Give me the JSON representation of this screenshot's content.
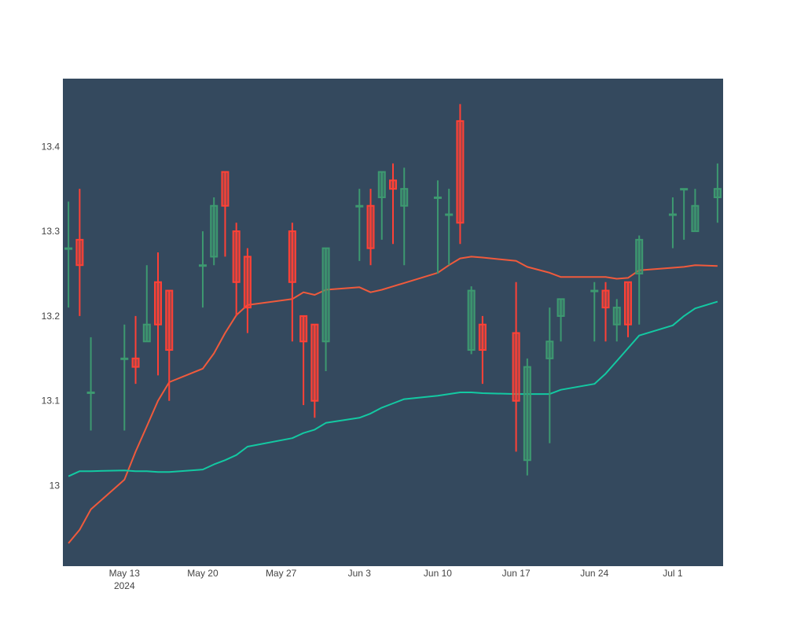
{
  "chart_data": {
    "type": "candlestick",
    "title": "",
    "xlabel": "",
    "ylabel": "",
    "ylim": [
      12.905,
      13.48
    ],
    "y_ticks": [
      13,
      13.1,
      13.2,
      13.3,
      13.4
    ],
    "y_tick_labels": [
      "13",
      "13.1",
      "13.2",
      "13.3",
      "13.4"
    ],
    "x_ticks": [
      "2024-05-13",
      "2024-05-20",
      "2024-05-27",
      "2024-06-03",
      "2024-06-10",
      "2024-06-17",
      "2024-06-24",
      "2024-07-01"
    ],
    "x_tick_labels": [
      "May 13",
      "May 20",
      "May 27",
      "Jun 3",
      "Jun 10",
      "Jun 17",
      "Jun 24",
      "Jul 1"
    ],
    "x_tick_year": "2024",
    "grid": false,
    "colors": {
      "plot_bg": "#34495e",
      "increasing": "#3d9970",
      "decreasing": "#ff4136",
      "ma_fast": "#f05a3c",
      "ma_slow": "#13c9a2"
    },
    "candles": [
      {
        "date": "2024-05-08",
        "open": 13.28,
        "high": 13.335,
        "low": 13.21,
        "close": 13.28
      },
      {
        "date": "2024-05-09",
        "open": 13.29,
        "high": 13.35,
        "low": 13.2,
        "close": 13.26
      },
      {
        "date": "2024-05-10",
        "open": 13.11,
        "high": 13.175,
        "low": 13.065,
        "close": 13.11
      },
      {
        "date": "2024-05-13",
        "open": 13.15,
        "high": 13.19,
        "low": 13.065,
        "close": 13.15
      },
      {
        "date": "2024-05-14",
        "open": 13.15,
        "high": 13.2,
        "low": 13.12,
        "close": 13.14
      },
      {
        "date": "2024-05-15",
        "open": 13.17,
        "high": 13.26,
        "low": 13.17,
        "close": 13.19
      },
      {
        "date": "2024-05-16",
        "open": 13.24,
        "high": 13.275,
        "low": 13.13,
        "close": 13.19
      },
      {
        "date": "2024-05-17",
        "open": 13.23,
        "high": 13.23,
        "low": 13.1,
        "close": 13.16
      },
      {
        "date": "2024-05-20",
        "open": 13.26,
        "high": 13.3,
        "low": 13.21,
        "close": 13.26
      },
      {
        "date": "2024-05-21",
        "open": 13.27,
        "high": 13.34,
        "low": 13.26,
        "close": 13.33
      },
      {
        "date": "2024-05-22",
        "open": 13.37,
        "high": 13.37,
        "low": 13.27,
        "close": 13.33
      },
      {
        "date": "2024-05-23",
        "open": 13.3,
        "high": 13.31,
        "low": 13.2,
        "close": 13.24
      },
      {
        "date": "2024-05-24",
        "open": 13.27,
        "high": 13.28,
        "low": 13.18,
        "close": 13.21
      },
      {
        "date": "2024-05-28",
        "open": 13.3,
        "high": 13.31,
        "low": 13.17,
        "close": 13.24
      },
      {
        "date": "2024-05-29",
        "open": 13.2,
        "high": 13.2,
        "low": 13.095,
        "close": 13.17
      },
      {
        "date": "2024-05-30",
        "open": 13.19,
        "high": 13.19,
        "low": 13.08,
        "close": 13.1
      },
      {
        "date": "2024-05-31",
        "open": 13.17,
        "high": 13.28,
        "low": 13.135,
        "close": 13.28
      },
      {
        "date": "2024-06-03",
        "open": 13.33,
        "high": 13.35,
        "low": 13.265,
        "close": 13.33
      },
      {
        "date": "2024-06-04",
        "open": 13.33,
        "high": 13.35,
        "low": 13.26,
        "close": 13.28
      },
      {
        "date": "2024-06-05",
        "open": 13.34,
        "high": 13.37,
        "low": 13.29,
        "close": 13.37
      },
      {
        "date": "2024-06-06",
        "open": 13.36,
        "high": 13.38,
        "low": 13.285,
        "close": 13.35
      },
      {
        "date": "2024-06-07",
        "open": 13.33,
        "high": 13.375,
        "low": 13.26,
        "close": 13.35
      },
      {
        "date": "2024-06-10",
        "open": 13.34,
        "high": 13.36,
        "low": 13.25,
        "close": 13.34
      },
      {
        "date": "2024-06-11",
        "open": 13.32,
        "high": 13.35,
        "low": 13.26,
        "close": 13.32
      },
      {
        "date": "2024-06-12",
        "open": 13.43,
        "high": 13.45,
        "low": 13.285,
        "close": 13.31
      },
      {
        "date": "2024-06-13",
        "open": 13.16,
        "high": 13.235,
        "low": 13.155,
        "close": 13.23
      },
      {
        "date": "2024-06-14",
        "open": 13.19,
        "high": 13.2,
        "low": 13.12,
        "close": 13.16
      },
      {
        "date": "2024-06-17",
        "open": 13.18,
        "high": 13.24,
        "low": 13.04,
        "close": 13.1
      },
      {
        "date": "2024-06-18",
        "open": 13.03,
        "high": 13.15,
        "low": 13.012,
        "close": 13.14
      },
      {
        "date": "2024-06-20",
        "open": 13.15,
        "high": 13.21,
        "low": 13.05,
        "close": 13.17
      },
      {
        "date": "2024-06-21",
        "open": 13.2,
        "high": 13.22,
        "low": 13.17,
        "close": 13.22
      },
      {
        "date": "2024-06-24",
        "open": 13.23,
        "high": 13.24,
        "low": 13.17,
        "close": 13.23
      },
      {
        "date": "2024-06-25",
        "open": 13.23,
        "high": 13.24,
        "low": 13.17,
        "close": 13.21
      },
      {
        "date": "2024-06-26",
        "open": 13.19,
        "high": 13.22,
        "low": 13.17,
        "close": 13.21
      },
      {
        "date": "2024-06-27",
        "open": 13.24,
        "high": 13.24,
        "low": 13.175,
        "close": 13.19
      },
      {
        "date": "2024-06-28",
        "open": 13.25,
        "high": 13.295,
        "low": 13.19,
        "close": 13.29
      },
      {
        "date": "2024-07-01",
        "open": 13.32,
        "high": 13.34,
        "low": 13.28,
        "close": 13.32
      },
      {
        "date": "2024-07-02",
        "open": 13.35,
        "high": 13.35,
        "low": 13.29,
        "close": 13.35
      },
      {
        "date": "2024-07-03",
        "open": 13.3,
        "high": 13.35,
        "low": 13.3,
        "close": 13.33
      },
      {
        "date": "2024-07-05",
        "open": 13.34,
        "high": 13.38,
        "low": 13.31,
        "close": 13.35
      }
    ],
    "series": [
      {
        "x": [
          "2024-05-08",
          "2024-05-09",
          "2024-05-10",
          "2024-05-13",
          "2024-05-14",
          "2024-05-15",
          "2024-05-16",
          "2024-05-17",
          "2024-05-20",
          "2024-05-21",
          "2024-05-22",
          "2024-05-23",
          "2024-05-24",
          "2024-05-28",
          "2024-05-29",
          "2024-05-30",
          "2024-05-31",
          "2024-06-03",
          "2024-06-04",
          "2024-06-05",
          "2024-06-06",
          "2024-06-07",
          "2024-06-10",
          "2024-06-11",
          "2024-06-12",
          "2024-06-13",
          "2024-06-14",
          "2024-06-17",
          "2024-06-18",
          "2024-06-20",
          "2024-06-21",
          "2024-06-24",
          "2024-06-25",
          "2024-06-26",
          "2024-06-27",
          "2024-06-28",
          "2024-07-01",
          "2024-07-02",
          "2024-07-03",
          "2024-07-05"
        ],
        "values": [
          12.932,
          12.948,
          12.972,
          13.007,
          13.04,
          13.07,
          13.1,
          13.122,
          13.138,
          13.156,
          13.18,
          13.201,
          13.213,
          13.22,
          13.228,
          13.225,
          13.231,
          13.234,
          13.228,
          13.231,
          13.235,
          13.239,
          13.251,
          13.26,
          13.268,
          13.27,
          13.269,
          13.265,
          13.258,
          13.251,
          13.246,
          13.246,
          13.246,
          13.244,
          13.245,
          13.254,
          13.257,
          13.258,
          13.26,
          13.259
        ]
      },
      {
        "x": [
          "2024-05-08",
          "2024-05-09",
          "2024-05-10",
          "2024-05-13",
          "2024-05-14",
          "2024-05-15",
          "2024-05-16",
          "2024-05-17",
          "2024-05-20",
          "2024-05-21",
          "2024-05-22",
          "2024-05-23",
          "2024-05-24",
          "2024-05-28",
          "2024-05-29",
          "2024-05-30",
          "2024-05-31",
          "2024-06-03",
          "2024-06-04",
          "2024-06-05",
          "2024-06-06",
          "2024-06-07",
          "2024-06-10",
          "2024-06-11",
          "2024-06-12",
          "2024-06-13",
          "2024-06-14",
          "2024-06-17",
          "2024-06-18",
          "2024-06-20",
          "2024-06-21",
          "2024-06-24",
          "2024-06-25",
          "2024-06-26",
          "2024-06-27",
          "2024-06-28",
          "2024-07-01",
          "2024-07-02",
          "2024-07-03",
          "2024-07-05"
        ],
        "values": [
          13.011,
          13.017,
          13.017,
          13.018,
          13.017,
          13.017,
          13.016,
          13.016,
          13.019,
          13.025,
          13.03,
          13.036,
          13.046,
          13.056,
          13.062,
          13.066,
          13.074,
          13.08,
          13.085,
          13.092,
          13.097,
          13.102,
          13.106,
          13.108,
          13.11,
          13.11,
          13.109,
          13.108,
          13.108,
          13.108,
          13.113,
          13.12,
          13.132,
          13.147,
          13.162,
          13.177,
          13.189,
          13.2,
          13.209,
          13.217
        ]
      }
    ]
  }
}
